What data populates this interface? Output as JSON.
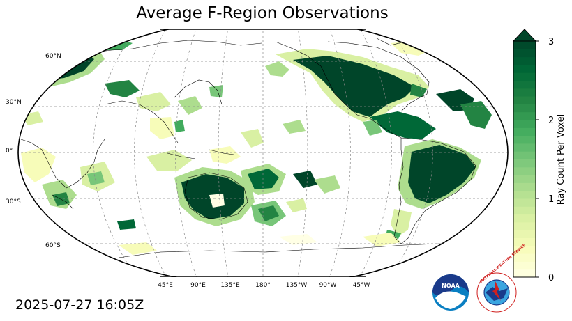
{
  "title": "Average F-Region Observations",
  "timestamp": "2025-07-27 16:05Z",
  "colorbar": {
    "label": "Ray Count Per Voxel",
    "ticks": [
      {
        "value": 0,
        "label": "0"
      },
      {
        "value": 1,
        "label": "1"
      },
      {
        "value": 2,
        "label": "2"
      },
      {
        "value": 3,
        "label": "3"
      }
    ],
    "min": 0,
    "max": 3,
    "extend": "max",
    "colors": [
      "#ffffe5",
      "#f7fcb9",
      "#d9f0a3",
      "#addd8e",
      "#78c679",
      "#41ab5d",
      "#238443",
      "#006837",
      "#004529"
    ]
  },
  "map": {
    "projection": "Robinson",
    "central_longitude": "180°",
    "gridlines": true,
    "lat_labels": [
      {
        "lat": 60,
        "label": "60°N"
      },
      {
        "lat": 30,
        "label": "30°N"
      },
      {
        "lat": 0,
        "label": "0°"
      },
      {
        "lat": -30,
        "label": "30°S"
      },
      {
        "lat": -60,
        "label": "60°S"
      }
    ],
    "lon_labels": [
      {
        "lon": 45,
        "label": "45°E"
      },
      {
        "lon": 90,
        "label": "90°E"
      },
      {
        "lon": 135,
        "label": "135°E"
      },
      {
        "lon": 180,
        "label": "180°"
      },
      {
        "lon": -135,
        "label": "135°W"
      },
      {
        "lon": -90,
        "label": "90°W"
      },
      {
        "lon": -45,
        "label": "45°W"
      }
    ]
  },
  "logos": {
    "noaa": "NOAA",
    "nws": "NATIONAL WEATHER SERVICE"
  }
}
